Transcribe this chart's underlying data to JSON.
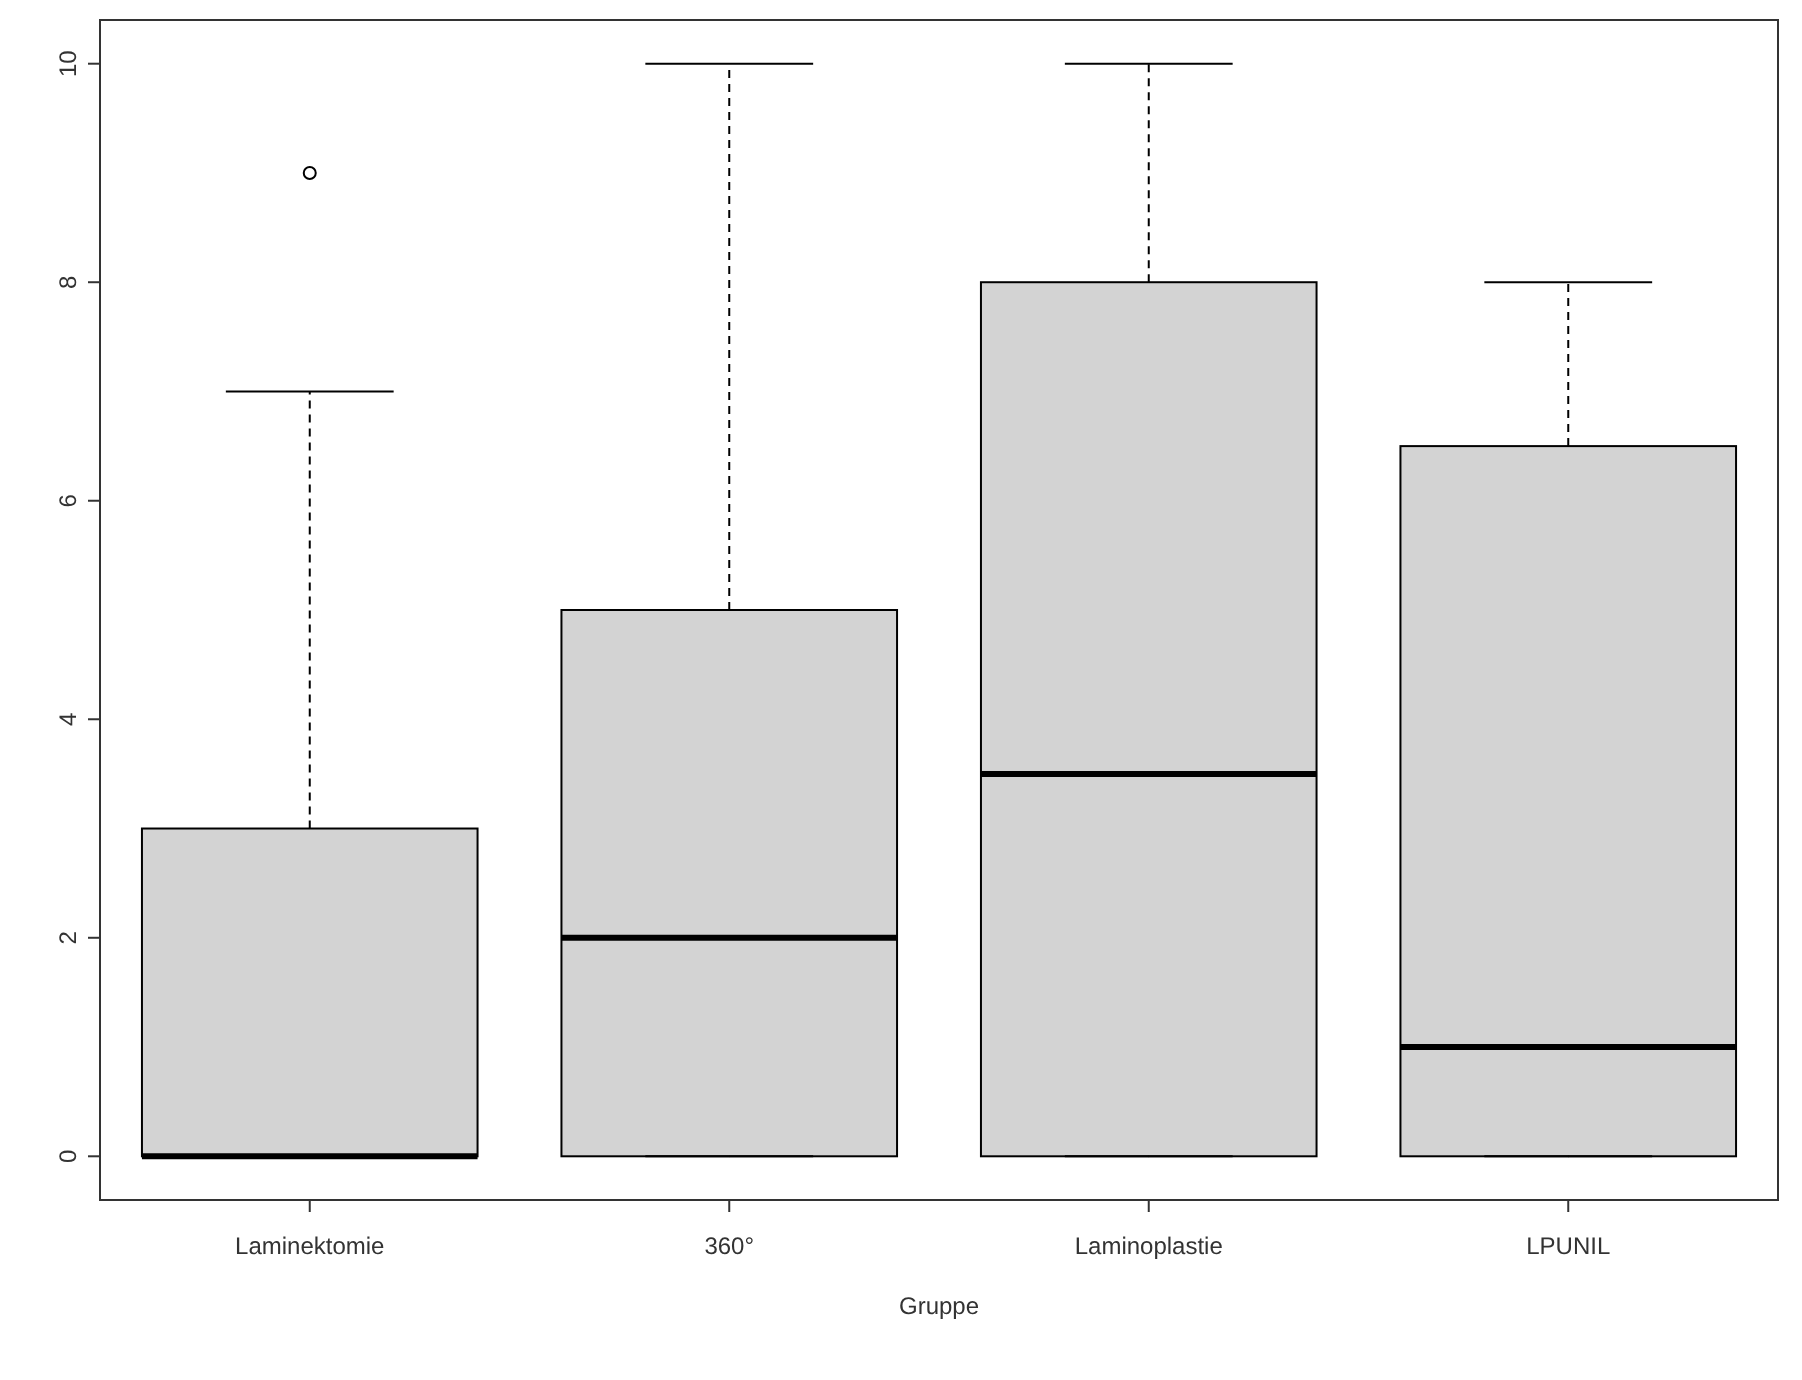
{
  "chart_data": {
    "type": "box",
    "xlabel": "Gruppe",
    "categories": [
      "Laminektomie",
      "360°",
      "Laminoplastie",
      "LPUNIL"
    ],
    "series": [
      {
        "color": "#d3d3d3",
        "boxes": [
          {
            "low": 0,
            "q1": 0,
            "median": 0,
            "q3": 3,
            "high": 7,
            "outliers": [
              9
            ]
          },
          {
            "low": 0,
            "q1": 0,
            "median": 2,
            "q3": 5,
            "high": 10
          },
          {
            "low": 0,
            "q1": 0,
            "median": 3.5,
            "q3": 8,
            "high": 10
          },
          {
            "low": 0,
            "q1": 0,
            "median": 1,
            "q3": 6.5,
            "high": 8
          }
        ]
      }
    ],
    "ylim": [
      -0.4,
      10.4
    ],
    "yticks": [
      0,
      2,
      4,
      6,
      8,
      10
    ]
  }
}
